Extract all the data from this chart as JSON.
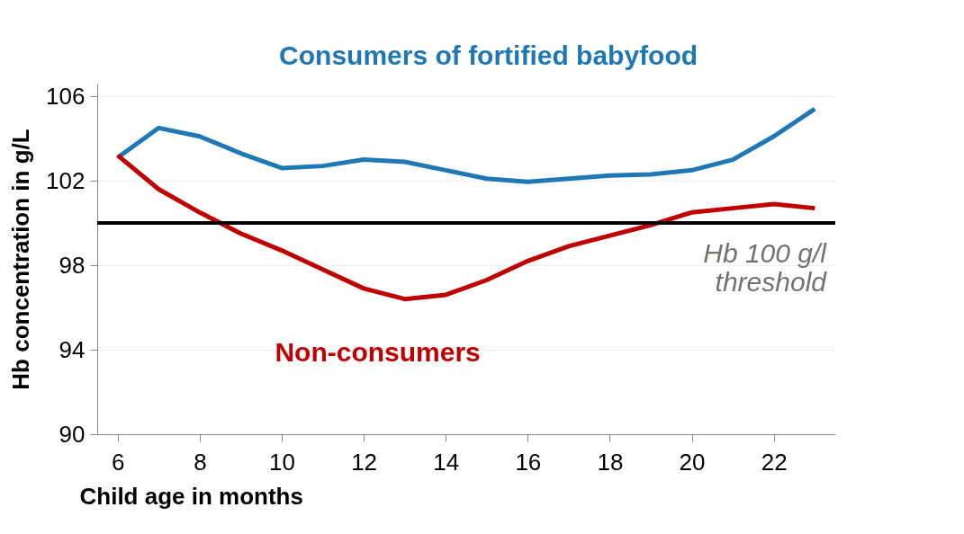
{
  "chart_data": {
    "type": "line",
    "xlabel": "Child age in months",
    "ylabel": "Hb concentration in g/L",
    "x": [
      6,
      7,
      8,
      9,
      10,
      11,
      12,
      13,
      14,
      15,
      16,
      17,
      18,
      19,
      20,
      21,
      22,
      23
    ],
    "series": [
      {
        "name": "Consumers of fortified babyfood",
        "color": "#1f77b4",
        "values": [
          103.1,
          104.5,
          104.1,
          103.3,
          102.6,
          102.7,
          103.0,
          102.9,
          102.5,
          102.1,
          101.95,
          102.1,
          102.25,
          102.3,
          102.5,
          103.0,
          104.1,
          105.4
        ]
      },
      {
        "name": "Non-consumers",
        "color": "#c00000",
        "values": [
          103.2,
          101.6,
          100.5,
          99.5,
          98.7,
          97.8,
          96.9,
          96.4,
          96.6,
          97.3,
          98.2,
          98.9,
          99.4,
          99.9,
          100.5,
          100.7,
          100.9,
          100.7
        ]
      }
    ],
    "xlim": [
      5.5,
      23.5
    ],
    "xticks": [
      6,
      8,
      10,
      12,
      14,
      16,
      18,
      20,
      22
    ],
    "ylim": [
      90,
      106.6
    ],
    "yticks": [
      90,
      94,
      98,
      102,
      106
    ],
    "ref_lines": [
      {
        "axis": "y",
        "value": 100,
        "label": "Hb 100 g/l\nthreshold",
        "color": "#000000"
      }
    ],
    "grid": "y",
    "legend": false,
    "marker": "none",
    "line_style": "solid"
  }
}
